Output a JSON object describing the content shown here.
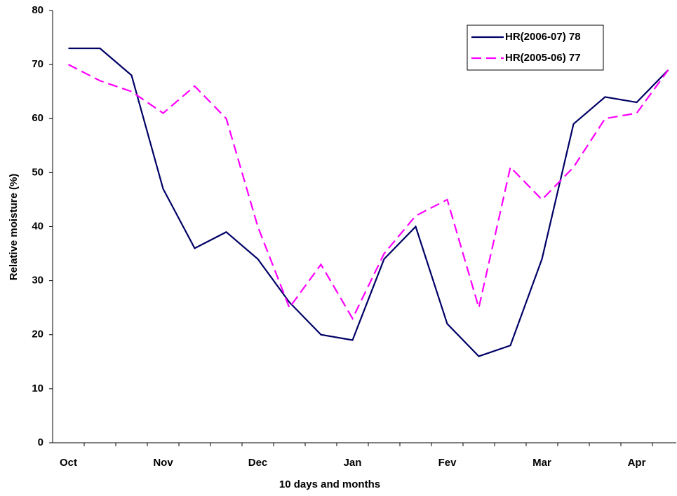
{
  "chart_data": {
    "type": "line",
    "x_label": "10 days and months",
    "y_label": "Relative moisture (%)",
    "categories": [
      "Oct",
      null,
      null,
      "Nov",
      null,
      null,
      "Dec",
      null,
      null,
      "Jan",
      null,
      null,
      "Fev",
      null,
      null,
      "Mar",
      null,
      null,
      "Apr",
      null
    ],
    "series": [
      {
        "name": "HR(2006-07) 78",
        "color": "#000066",
        "dash": false,
        "values": [
          73,
          73,
          68,
          47,
          36,
          39,
          34,
          26,
          20,
          19,
          34,
          40,
          22,
          16,
          18,
          34,
          59,
          64,
          63,
          69
        ]
      },
      {
        "name": "HR(2005-06) 77",
        "color": "#ff00ff",
        "dash": true,
        "values": [
          70,
          67,
          65,
          61,
          66,
          60,
          40,
          25,
          33,
          23,
          35,
          42,
          45,
          25,
          51,
          45,
          51,
          60,
          61,
          69
        ]
      }
    ],
    "ylim": [
      0,
      80
    ],
    "yticks": [
      0,
      10,
      20,
      30,
      40,
      50,
      60,
      70,
      80
    ],
    "grid": false,
    "legend": "top-right"
  }
}
